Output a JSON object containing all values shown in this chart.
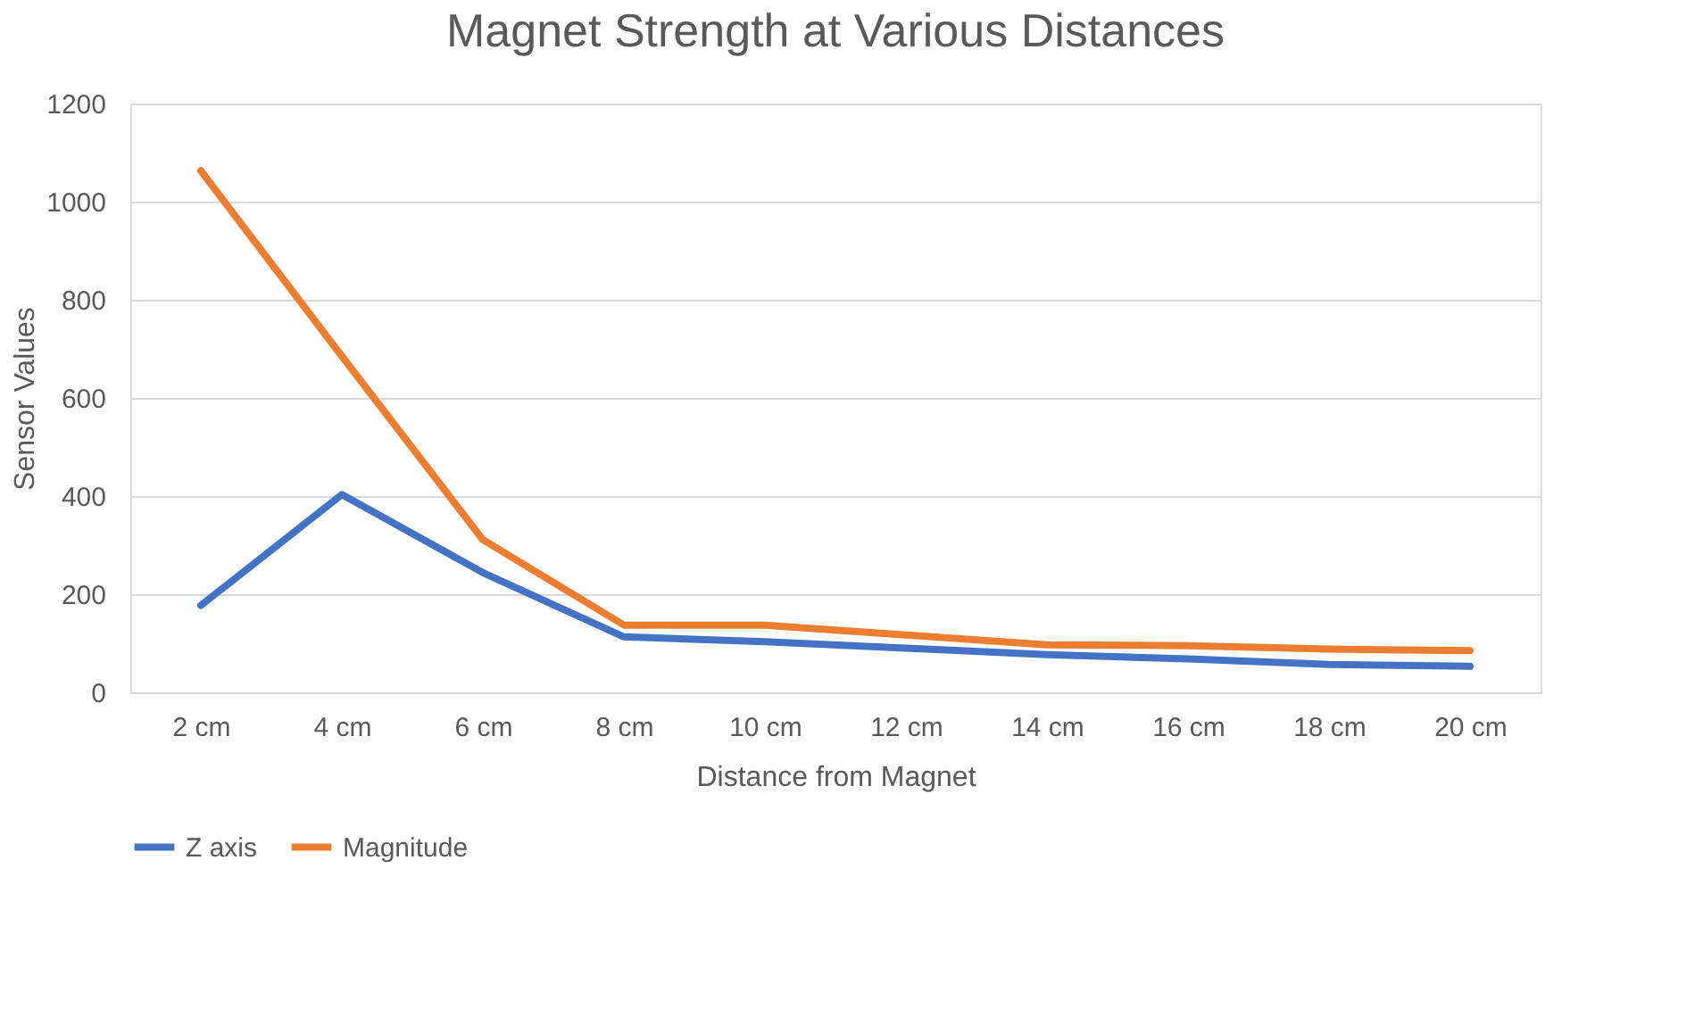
{
  "chart_data": {
    "type": "line",
    "title": "Magnet Strength at Various Distances",
    "xlabel": "Distance from Magnet",
    "ylabel": "Sensor Values",
    "categories": [
      "2 cm",
      "4 cm",
      "6 cm",
      "8 cm",
      "10 cm",
      "12 cm",
      "14 cm",
      "16 cm",
      "18 cm",
      "20 cm"
    ],
    "series": [
      {
        "name": "Z axis",
        "color": "#4472c4",
        "values": [
          177,
          403,
          244,
          113,
          103,
          90,
          77,
          68,
          57,
          53
        ]
      },
      {
        "name": "Magnitude",
        "color": "#ed7d31",
        "values": [
          1063,
          685,
          311,
          137,
          137,
          117,
          97,
          95,
          88,
          85
        ]
      }
    ],
    "ylim": [
      0,
      1200
    ],
    "yticks": [
      0,
      200,
      400,
      600,
      800,
      1000,
      1200
    ],
    "grid": "y",
    "legend": "bottom",
    "marker": "none",
    "line_style": "solid"
  }
}
